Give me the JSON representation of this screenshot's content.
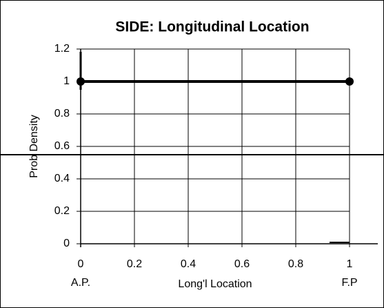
{
  "chart_data": {
    "type": "line",
    "title": "SIDE: Longitudinal Location",
    "x_label": "Long'l Location",
    "y_label": "Prob  Density",
    "annotations": [
      "A.P.",
      "F.P"
    ],
    "x": [
      0,
      1
    ],
    "series": [
      {
        "name": "SIDE",
        "color": "#000000",
        "values": [
          1,
          1
        ]
      }
    ],
    "xlim": [
      0,
      1
    ],
    "xticks": [
      0,
      0.2,
      0.4,
      0.6,
      0.8,
      1
    ],
    "ylim": [
      0,
      1.2
    ],
    "yticks": [
      0,
      0.2,
      0.4,
      0.6,
      0.8,
      1,
      1.2
    ],
    "grid": true
  }
}
